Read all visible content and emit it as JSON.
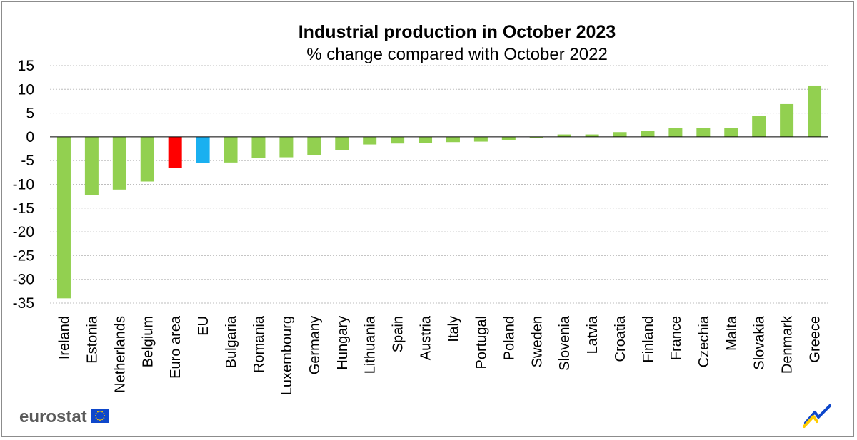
{
  "chart_data": {
    "type": "bar",
    "title": "Industrial production in October 2023",
    "subtitle": "% change compared with October 2022",
    "xlabel": "",
    "ylabel": "",
    "ylim": [
      -35,
      15
    ],
    "yticks": [
      15,
      10,
      5,
      0,
      -5,
      -10,
      -15,
      -20,
      -25,
      -30,
      -35
    ],
    "ytick_labels": [
      "15",
      "10",
      "5",
      "0",
      "-5",
      "-10",
      "-15",
      "-20",
      "-25",
      "-30",
      "-35"
    ],
    "grid": true,
    "categories": [
      "Ireland",
      "Estonia",
      "Netherlands",
      "Belgium",
      "Euro area",
      "EU",
      "Bulgaria",
      "Romania",
      "Luxembourg",
      "Germany",
      "Hungary",
      "Lithuania",
      "Spain",
      "Austria",
      "Italy",
      "Portugal",
      "Poland",
      "Sweden",
      "Slovenia",
      "Latvia",
      "Croatia",
      "Finland",
      "France",
      "Czechia",
      "Malta",
      "Slovakia",
      "Denmark",
      "Greece"
    ],
    "values": [
      -34.0,
      -12.2,
      -11.1,
      -9.4,
      -6.6,
      -5.5,
      -5.4,
      -4.4,
      -4.3,
      -3.9,
      -2.8,
      -1.6,
      -1.4,
      -1.3,
      -1.1,
      -1.0,
      -0.7,
      -0.3,
      0.5,
      0.5,
      1.0,
      1.2,
      1.8,
      1.8,
      1.9,
      4.4,
      6.9,
      10.8
    ],
    "colors": {
      "default": "#92d050",
      "Euro area": "#ff0000",
      "EU": "#1ab0f0"
    }
  },
  "branding": {
    "logo_text": "eurostat"
  }
}
